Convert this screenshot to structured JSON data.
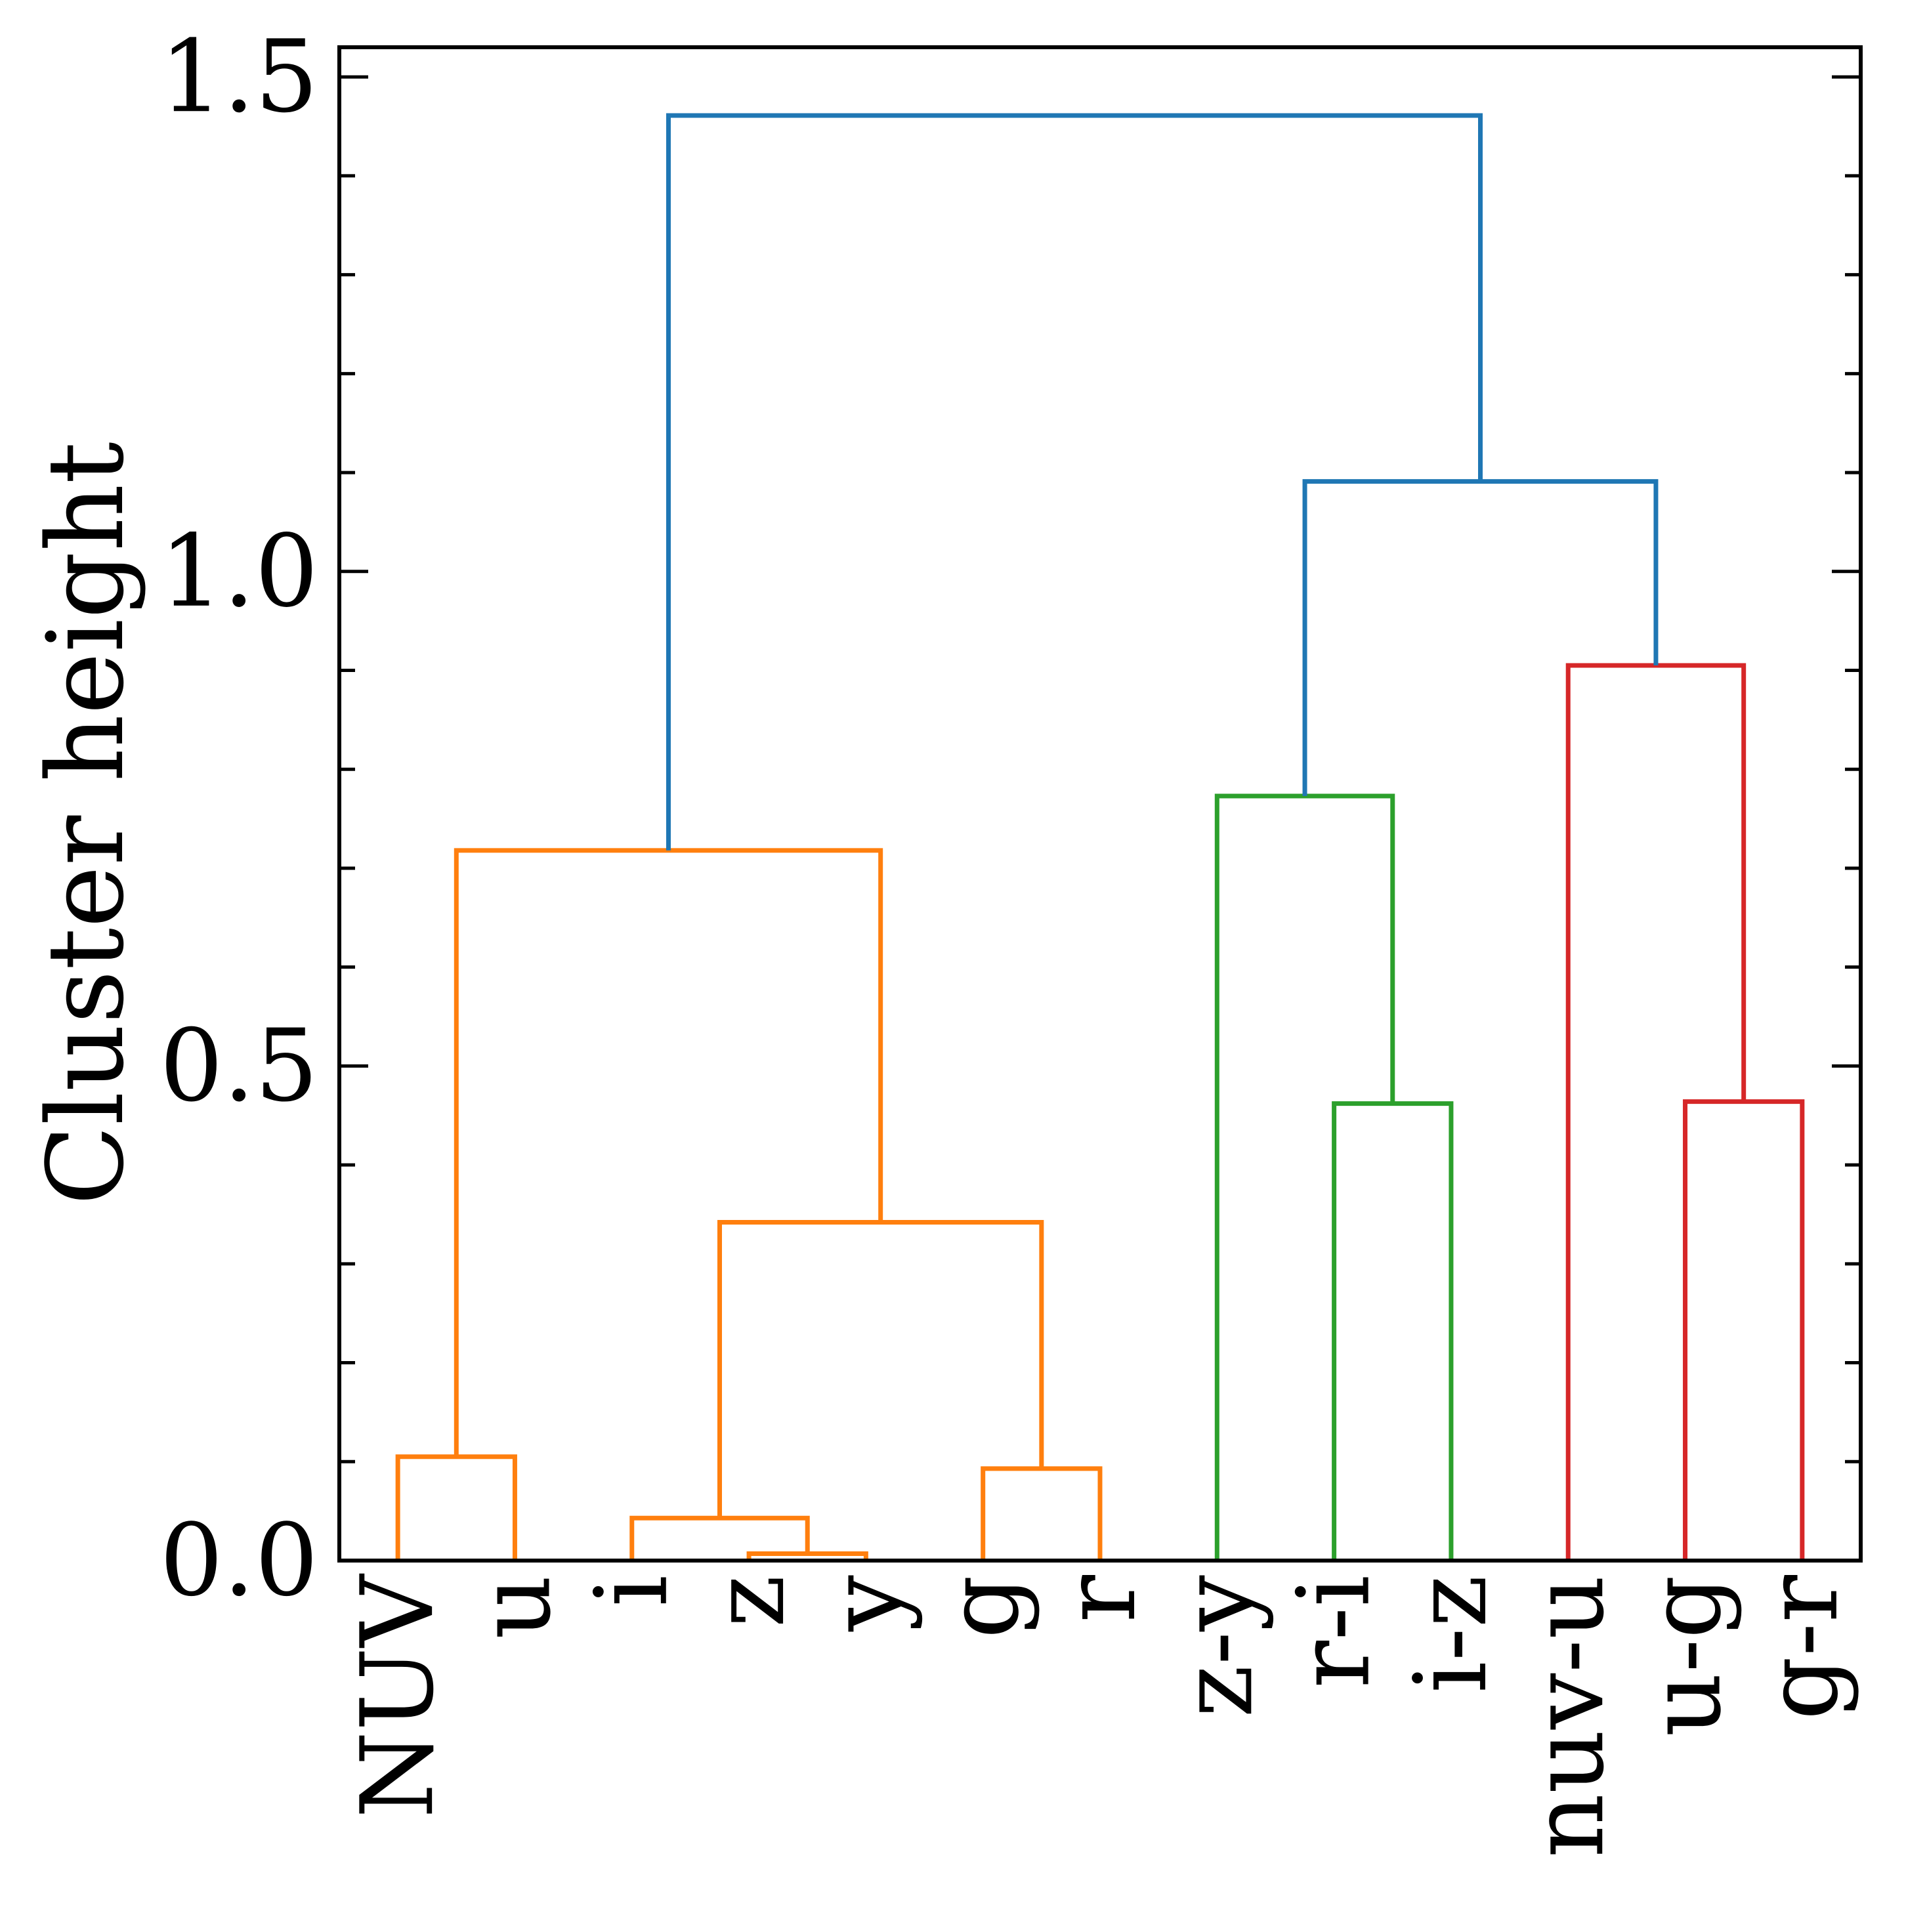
{
  "chart_data": {
    "type": "dendrogram",
    "title": "",
    "xlabel": "",
    "ylabel": "Cluster height",
    "ylim": [
      0,
      1.53
    ],
    "yticks_major": [
      "0.0",
      "0.5",
      "1.0",
      "1.5"
    ],
    "yticks_minor_step": 0.1,
    "grid": false,
    "leaves": [
      "NUV",
      "u",
      "i",
      "z",
      "y",
      "g",
      "r",
      "z-y",
      "r-i",
      "i-z",
      "nuv-u",
      "u-g",
      "g-r"
    ],
    "colors": {
      "orange": "#ff7f0e",
      "green": "#2ca02c",
      "red": "#d62728",
      "blue": "#1f77b4"
    },
    "merges": [
      {
        "id": "m1",
        "left": "NUV",
        "right": "u",
        "height": 0.105,
        "color": "orange"
      },
      {
        "id": "m2",
        "left": "z",
        "right": "y",
        "height": 0.007,
        "color": "orange"
      },
      {
        "id": "m3",
        "left": "i",
        "right": "m2",
        "height": 0.043,
        "color": "orange"
      },
      {
        "id": "m4",
        "left": "g",
        "right": "r",
        "height": 0.093,
        "color": "orange"
      },
      {
        "id": "m5",
        "left": "m3",
        "right": "m4",
        "height": 0.342,
        "color": "orange"
      },
      {
        "id": "m6",
        "left": "m1",
        "right": "m5",
        "height": 0.718,
        "color": "orange"
      },
      {
        "id": "m7",
        "left": "r-i",
        "right": "i-z",
        "height": 0.462,
        "color": "green"
      },
      {
        "id": "m8",
        "left": "z-y",
        "right": "m7",
        "height": 0.773,
        "color": "green"
      },
      {
        "id": "m9",
        "left": "u-g",
        "right": "g-r",
        "height": 0.464,
        "color": "red"
      },
      {
        "id": "m10",
        "left": "nuv-u",
        "right": "m9",
        "height": 0.905,
        "color": "red"
      },
      {
        "id": "m11",
        "left": "m8",
        "right": "m10",
        "height": 1.091,
        "color": "blue"
      },
      {
        "id": "m12",
        "left": "m6",
        "right": "m11",
        "height": 1.461,
        "color": "blue"
      }
    ]
  }
}
